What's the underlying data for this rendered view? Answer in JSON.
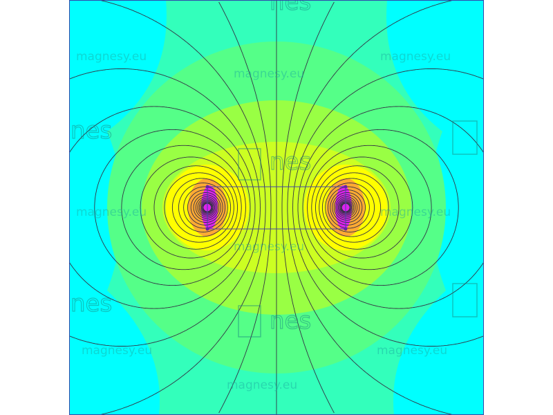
{
  "watermark": {
    "text": "magnesy.eu",
    "logo_text": "nes"
  },
  "colors": {
    "background": "#00ffff",
    "band1": "#33ffbb",
    "band2": "#55ff88",
    "band3": "#99ff44",
    "band4": "#ccff22",
    "band5": "#ffff00",
    "band6": "#ffaa33",
    "pole": "#dd22ee",
    "field_line": "#333344",
    "magnet_outline": "#4444aa"
  }
}
